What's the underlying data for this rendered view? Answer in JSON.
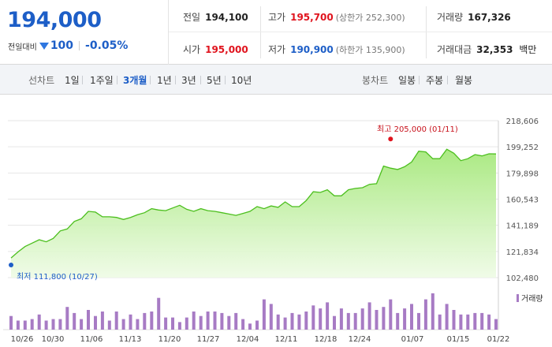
{
  "stock": {
    "price": "194,000",
    "change_label": "전일대비",
    "change_value": "100",
    "change_rate": "-0.05%",
    "direction_icon": "down-triangle-icon"
  },
  "stats": {
    "prev_close": {
      "label": "전일",
      "value": "194,100"
    },
    "high": {
      "label": "고가",
      "value": "195,700",
      "sub": "(상한가 252,300)"
    },
    "volume": {
      "label": "거래량",
      "value": "167,326"
    },
    "open": {
      "label": "시가",
      "value": "195,000"
    },
    "low": {
      "label": "저가",
      "value": "190,900",
      "sub": "(하한가 135,900)"
    },
    "amount": {
      "label": "거래대금",
      "value": "32,353",
      "unit": "백만"
    }
  },
  "toolbar": {
    "line_chart_label": "선차트",
    "periods": [
      "1일",
      "1주일",
      "3개월",
      "1년",
      "3년",
      "5년",
      "10년"
    ],
    "active_period": "3개월",
    "candle_label": "봉차트",
    "candle_types": [
      "일봉",
      "주봉",
      "월봉"
    ]
  },
  "colors": {
    "up": "#e0141e",
    "down": "#1d5ec7",
    "line": "#4cbf1e",
    "area": "#a6e87c",
    "volume": "#a77bc4"
  },
  "chart_data": {
    "type": "area",
    "x_tick_labels": [
      "10/26",
      "10/30",
      "11/06",
      "11/13",
      "11/20",
      "11/27",
      "12/04",
      "12/11",
      "12/18",
      "12/24",
      "01/07",
      "01/15",
      "01/22"
    ],
    "y_tick_labels": [
      "218,606",
      "199,252",
      "179,898",
      "160,543",
      "141,189",
      "121,834",
      "102,480"
    ],
    "ylim": [
      102480,
      218606
    ],
    "y_unit_label": "",
    "high_annotation": "최고 205,000 (01/11)",
    "low_annotation": "최저 111,800 (10/27)",
    "high": {
      "value": 205000,
      "index": 54
    },
    "low": {
      "value": 111800,
      "index": 0
    },
    "series": [
      {
        "values": [
          117000,
          121500,
          125500,
          128000,
          130500,
          129000,
          131500,
          137000,
          138500,
          144000,
          146000,
          151500,
          151000,
          147500,
          147500,
          147000,
          145500,
          147000,
          149000,
          150500,
          153500,
          152500,
          152000,
          154000,
          156000,
          153000,
          151500,
          153500,
          152000,
          151500,
          150500,
          149500,
          148500,
          150000,
          151500,
          155000,
          153500,
          155500,
          154500,
          158500,
          155000,
          155000,
          159500,
          166000,
          165500,
          167500,
          163000,
          163000,
          167500,
          168500,
          169000,
          171500,
          172000,
          185000,
          183500,
          182500,
          184500,
          188000,
          196000,
          195500,
          190500,
          190500,
          197500,
          194500,
          189000,
          190500,
          193500,
          192500,
          194100,
          194000
        ]
      }
    ],
    "volume_label": "거래량",
    "volume": [
      9,
      6,
      6,
      7,
      10,
      6,
      7,
      7,
      15,
      11,
      7,
      13,
      9,
      12,
      6,
      12,
      7,
      10,
      7,
      11,
      12,
      21,
      8,
      8,
      5,
      8,
      12,
      9,
      12,
      12,
      11,
      9,
      11,
      7,
      4,
      6,
      20,
      17,
      10,
      8,
      11,
      10,
      12,
      16,
      14,
      18,
      9,
      14,
      11,
      11,
      14,
      18,
      13,
      15,
      20,
      11,
      14,
      17,
      11,
      20,
      24,
      10,
      17,
      13,
      10,
      10,
      11,
      11,
      10,
      7
    ]
  }
}
